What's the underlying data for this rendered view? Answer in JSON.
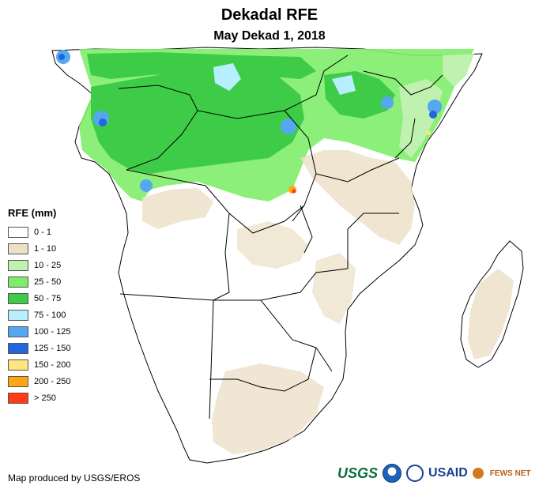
{
  "title": "Dekadal RFE",
  "subtitle": "May Dekad 1, 2018",
  "legend": {
    "title": "RFE (mm)",
    "items": [
      {
        "label": "0 - 1",
        "color": "#ffffff"
      },
      {
        "label": "1 - 10",
        "color": "#ede0c8"
      },
      {
        "label": "10 - 25",
        "color": "#bff2b0"
      },
      {
        "label": "25 - 50",
        "color": "#7eed6a"
      },
      {
        "label": "50 - 75",
        "color": "#3ecb47"
      },
      {
        "label": "75 - 100",
        "color": "#b7efff"
      },
      {
        "label": "100 - 125",
        "color": "#55a8ef"
      },
      {
        "label": "125 - 150",
        "color": "#2266dd"
      },
      {
        "label": "150 - 200",
        "color": "#ffe480"
      },
      {
        "label": "200 - 250",
        "color": "#ffa414"
      },
      {
        "label": "> 250",
        "color": "#ff3c14"
      }
    ]
  },
  "credit": "Map produced by USGS/EROS",
  "logos": {
    "usgs": "USGS",
    "noaa_icon": "noaa-icon",
    "usaid": "USAID",
    "fews": "FEWS NET"
  }
}
